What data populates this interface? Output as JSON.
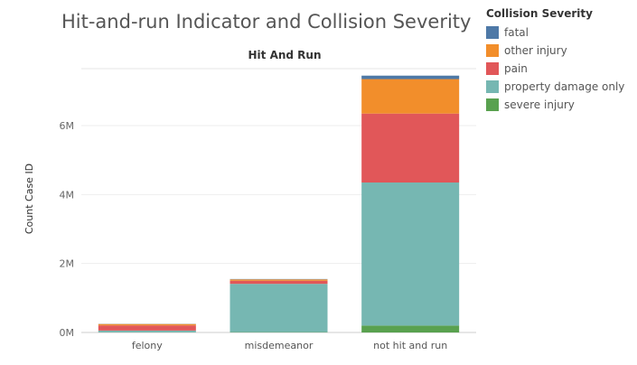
{
  "chart_data": {
    "type": "bar",
    "stacked": true,
    "title": "Hit-and-run Indicator and Collision Severity",
    "column_header": "Hit And Run",
    "ylabel": "Count Case ID",
    "categories": [
      "felony",
      "misdemeanor",
      "not hit and run"
    ],
    "y_ticks": [
      {
        "value": 0,
        "label": "0M"
      },
      {
        "value": 2000000,
        "label": "2M"
      },
      {
        "value": 4000000,
        "label": "4M"
      },
      {
        "value": 6000000,
        "label": "6M"
      }
    ],
    "ylim": [
      0,
      7600000
    ],
    "legend_title": "Collision Severity",
    "legend_position": "right",
    "series": [
      {
        "name": "severe injury",
        "color": "#59a14f",
        "values": [
          5000,
          10000,
          200000
        ]
      },
      {
        "name": "property damage only",
        "color": "#76b7b2",
        "values": [
          50000,
          1400000,
          4150000
        ]
      },
      {
        "name": "pain",
        "color": "#e15759",
        "values": [
          150000,
          90000,
          2000000
        ]
      },
      {
        "name": "other injury",
        "color": "#f28e2b",
        "values": [
          40000,
          40000,
          1000000
        ]
      },
      {
        "name": "fatal",
        "color": "#4e79a7",
        "values": [
          5000,
          10000,
          100000
        ]
      }
    ],
    "legend_order": [
      "fatal",
      "other injury",
      "pain",
      "property damage only",
      "severe injury"
    ]
  }
}
